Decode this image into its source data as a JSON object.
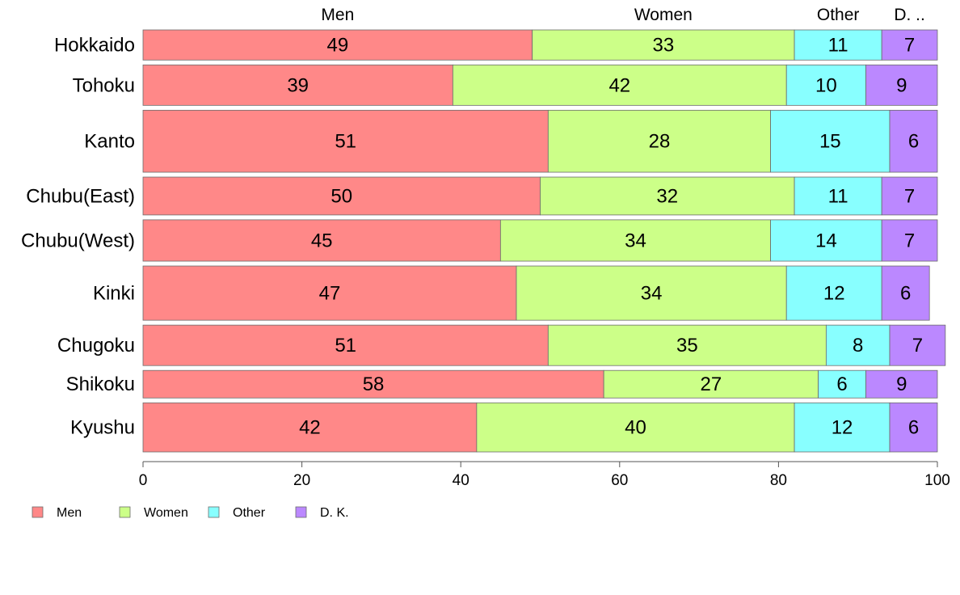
{
  "chart_data": {
    "type": "bar",
    "orientation": "horizontal",
    "stacked": true,
    "variable_width": true,
    "categories": [
      "Hokkaido",
      "Tohoku",
      "Kanto",
      "Chubu(East)",
      "Chubu(West)",
      "Kinki",
      "Chugoku",
      "Shikoku",
      "Kyushu"
    ],
    "series": [
      {
        "name": "Men",
        "color": "#ff8888",
        "values": [
          49,
          39,
          51,
          50,
          45,
          47,
          51,
          58,
          42
        ]
      },
      {
        "name": "Women",
        "color": "#ccff88",
        "values": [
          33,
          42,
          28,
          32,
          34,
          34,
          35,
          27,
          40
        ]
      },
      {
        "name": "Other",
        "color": "#88ffff",
        "values": [
          11,
          10,
          15,
          11,
          14,
          12,
          8,
          6,
          12
        ]
      },
      {
        "name": "D. K.",
        "color": "#bb88ff",
        "values": [
          7,
          9,
          6,
          7,
          7,
          6,
          7,
          9,
          6
        ]
      }
    ],
    "row_weights": [
      35,
      47,
      72,
      44,
      48,
      63,
      47,
      32,
      57
    ],
    "column_headers": [
      "Men",
      "Women",
      "Other",
      "D. .."
    ],
    "xlim": [
      0,
      100
    ],
    "xticks": [
      0,
      20,
      40,
      60,
      80,
      100
    ],
    "title": "",
    "xlabel": "",
    "ylabel": "",
    "grid": false,
    "legend_position": "bottom-left"
  }
}
